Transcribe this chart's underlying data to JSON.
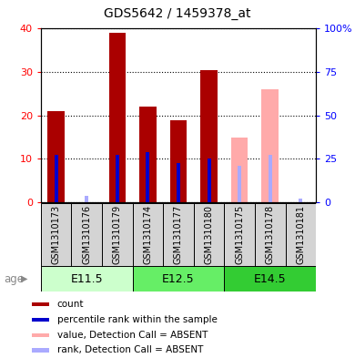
{
  "title": "GDS5642 / 1459378_at",
  "samples": [
    "GSM1310173",
    "GSM1310176",
    "GSM1310179",
    "GSM1310174",
    "GSM1310177",
    "GSM1310180",
    "GSM1310175",
    "GSM1310178",
    "GSM1310181"
  ],
  "count_values": [
    21,
    0,
    39,
    22,
    19,
    30.5,
    0,
    0,
    0
  ],
  "rank_values": [
    11,
    0,
    11,
    11.5,
    9,
    10,
    0,
    0,
    0
  ],
  "absent_count_values": [
    0,
    0,
    0,
    0,
    0,
    0,
    15,
    26,
    0
  ],
  "absent_rank_values": [
    0,
    1.5,
    0,
    0,
    0,
    0,
    8.5,
    11,
    0.8
  ],
  "groups": [
    {
      "label": "E11.5",
      "start": 0,
      "end": 3,
      "color": "#ccffcc"
    },
    {
      "label": "E12.5",
      "start": 3,
      "end": 6,
      "color": "#66ee66"
    },
    {
      "label": "E14.5",
      "start": 6,
      "end": 9,
      "color": "#33cc33"
    }
  ],
  "ylim_left": [
    0,
    40
  ],
  "ylim_right": [
    0,
    100
  ],
  "yticks_left": [
    0,
    10,
    20,
    30,
    40
  ],
  "yticks_right": [
    0,
    25,
    50,
    75,
    100
  ],
  "yticklabels_right": [
    "0",
    "25",
    "50",
    "75",
    "100%"
  ],
  "color_count": "#aa0000",
  "color_rank": "#0000cc",
  "color_absent_count": "#ffaaaa",
  "color_absent_rank": "#aaaaff",
  "count_bar_width": 0.55,
  "rank_bar_width": 0.12,
  "legend_items": [
    {
      "color": "#aa0000",
      "label": "count"
    },
    {
      "color": "#0000cc",
      "label": "percentile rank within the sample"
    },
    {
      "color": "#ffaaaa",
      "label": "value, Detection Call = ABSENT"
    },
    {
      "color": "#aaaaff",
      "label": "rank, Detection Call = ABSENT"
    }
  ],
  "bg_gray": "#d4d4d4"
}
